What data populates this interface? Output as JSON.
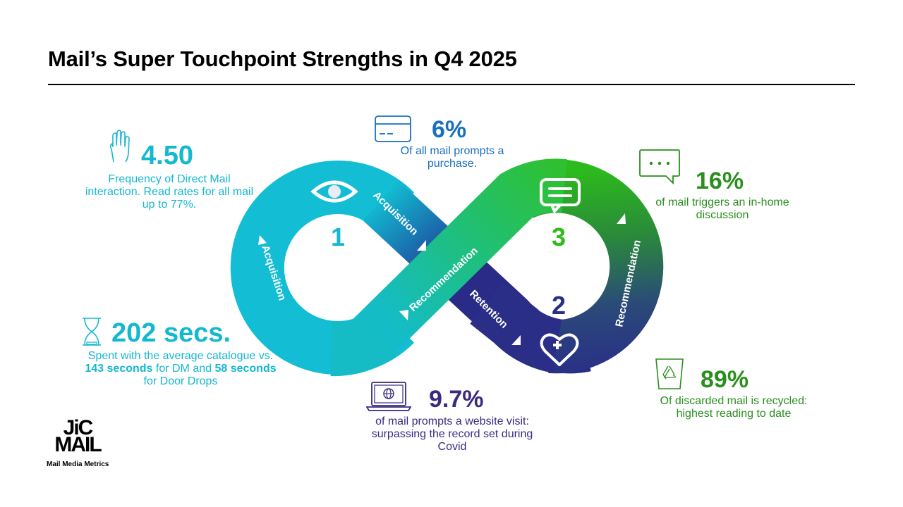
{
  "header": {
    "title": "Mail’s Super Touchpoint Strengths in Q4 2025"
  },
  "colors": {
    "cyan": "#14b8d0",
    "blue": "#1a6fbf",
    "green": "#2a8f1e",
    "purple": "#3b2a80",
    "navy": "#2a2f86"
  },
  "stats": {
    "frequency": {
      "value": "4.50",
      "desc": "Frequency of Direct Mail interaction. Read rates for all mail up to 77%.",
      "icon": "hand-icon"
    },
    "purchase": {
      "value": "6%",
      "desc": "Of all mail prompts a purchase.",
      "icon": "credit-card-icon"
    },
    "discussion": {
      "value": "16%",
      "desc": "of mail triggers an in-home discussion",
      "icon": "speech-bubble-icon"
    },
    "time": {
      "value": "202 secs.",
      "desc_1": "Spent with the average catalogue vs. ",
      "desc_bold_1": "143 seconds",
      "desc_2": " for DM and ",
      "desc_bold_2": "58 seconds",
      "desc_3": " for Door Drops",
      "icon": "hourglass-icon"
    },
    "website": {
      "value": "9.7%",
      "desc": "of mail prompts a website visit: surpassing the record set during Covid",
      "icon": "laptop-globe-icon"
    },
    "recycled": {
      "value": "89%",
      "desc": "Of discarded mail is recycled: highest reading to date",
      "icon": "recycle-bin-icon"
    }
  },
  "loop": {
    "labels": {
      "acq_left": "Acquisition",
      "acq_top": "Acquisition",
      "rec_cross": "Recommendation",
      "retention": "Retention",
      "rec_right": "Recommendation"
    },
    "numbers": {
      "one": "1",
      "two": "2",
      "three": "3"
    }
  },
  "logo": {
    "mark_1": "JiC",
    "mark_2": "MAIL",
    "tagline": "Mail Media Metrics"
  }
}
